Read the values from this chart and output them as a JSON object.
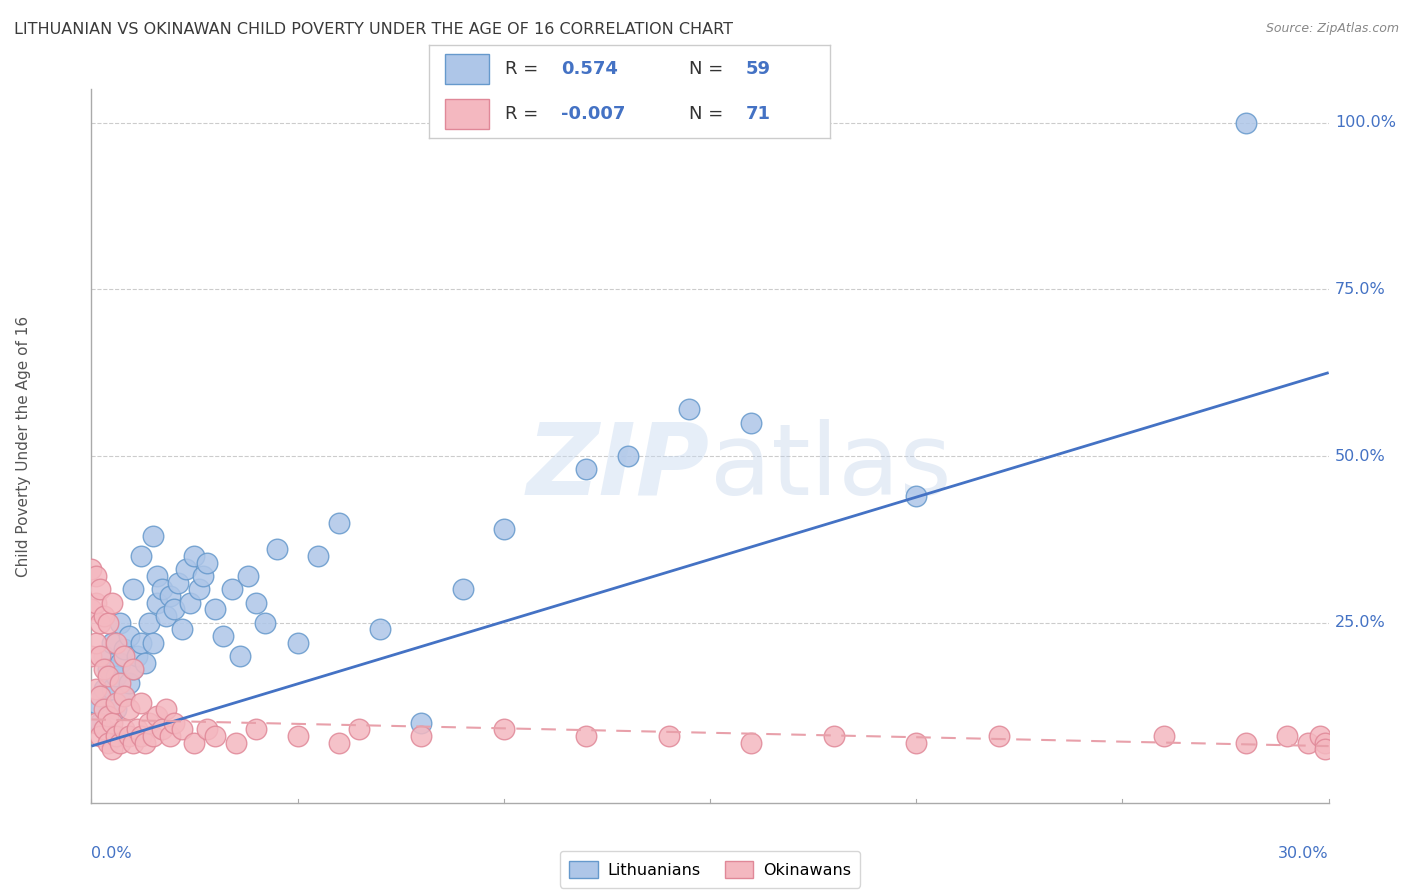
{
  "title": "LITHUANIAN VS OKINAWAN CHILD POVERTY UNDER THE AGE OF 16 CORRELATION CHART",
  "source": "Source: ZipAtlas.com",
  "ylabel": "Child Poverty Under the Age of 16",
  "xlim": [
    0.0,
    0.3
  ],
  "ylim": [
    -0.02,
    1.05
  ],
  "watermark": "ZIPatlas",
  "blue_scatter_color": "#aec6e8",
  "blue_edge_color": "#6699cc",
  "pink_scatter_color": "#f4b8c0",
  "pink_edge_color": "#e08898",
  "blue_line_color": "#4472c4",
  "pink_line_color": "#e8a0aa",
  "title_color": "#3a3a3a",
  "axis_label_color": "#4472c4",
  "grid_color": "#cccccc",
  "legend_text_color": "#4472c4",
  "legend_r_color": "#333333",
  "lithuanians_x": [
    0.001,
    0.002,
    0.003,
    0.003,
    0.004,
    0.005,
    0.005,
    0.006,
    0.006,
    0.007,
    0.007,
    0.008,
    0.008,
    0.009,
    0.009,
    0.01,
    0.01,
    0.011,
    0.012,
    0.012,
    0.013,
    0.014,
    0.015,
    0.015,
    0.016,
    0.016,
    0.017,
    0.018,
    0.019,
    0.02,
    0.021,
    0.022,
    0.023,
    0.024,
    0.025,
    0.026,
    0.027,
    0.028,
    0.03,
    0.032,
    0.034,
    0.036,
    0.038,
    0.04,
    0.042,
    0.045,
    0.05,
    0.055,
    0.06,
    0.07,
    0.08,
    0.09,
    0.1,
    0.12,
    0.13,
    0.145,
    0.16,
    0.2,
    0.28
  ],
  "lithuanians_y": [
    0.13,
    0.1,
    0.15,
    0.2,
    0.18,
    0.15,
    0.22,
    0.17,
    0.12,
    0.19,
    0.25,
    0.14,
    0.21,
    0.16,
    0.23,
    0.18,
    0.3,
    0.2,
    0.22,
    0.35,
    0.19,
    0.25,
    0.22,
    0.38,
    0.28,
    0.32,
    0.3,
    0.26,
    0.29,
    0.27,
    0.31,
    0.24,
    0.33,
    0.28,
    0.35,
    0.3,
    0.32,
    0.34,
    0.27,
    0.23,
    0.3,
    0.2,
    0.32,
    0.28,
    0.25,
    0.36,
    0.22,
    0.35,
    0.4,
    0.24,
    0.1,
    0.3,
    0.39,
    0.48,
    0.5,
    0.57,
    0.55,
    0.44,
    1.0
  ],
  "okinawans_x": [
    0.0,
    0.0,
    0.0,
    0.001,
    0.001,
    0.001,
    0.001,
    0.001,
    0.002,
    0.002,
    0.002,
    0.002,
    0.002,
    0.003,
    0.003,
    0.003,
    0.003,
    0.004,
    0.004,
    0.004,
    0.004,
    0.005,
    0.005,
    0.005,
    0.006,
    0.006,
    0.006,
    0.007,
    0.007,
    0.008,
    0.008,
    0.008,
    0.009,
    0.009,
    0.01,
    0.01,
    0.011,
    0.012,
    0.012,
    0.013,
    0.014,
    0.015,
    0.016,
    0.017,
    0.018,
    0.019,
    0.02,
    0.022,
    0.025,
    0.028,
    0.03,
    0.035,
    0.04,
    0.05,
    0.06,
    0.065,
    0.08,
    0.1,
    0.12,
    0.14,
    0.16,
    0.18,
    0.2,
    0.22,
    0.26,
    0.28,
    0.29,
    0.295,
    0.298,
    0.299,
    0.299
  ],
  "okinawans_y": [
    0.2,
    0.27,
    0.33,
    0.1,
    0.15,
    0.22,
    0.28,
    0.32,
    0.08,
    0.14,
    0.2,
    0.25,
    0.3,
    0.09,
    0.12,
    0.18,
    0.26,
    0.07,
    0.11,
    0.17,
    0.25,
    0.06,
    0.1,
    0.28,
    0.08,
    0.13,
    0.22,
    0.07,
    0.16,
    0.09,
    0.14,
    0.2,
    0.08,
    0.12,
    0.07,
    0.18,
    0.09,
    0.08,
    0.13,
    0.07,
    0.1,
    0.08,
    0.11,
    0.09,
    0.12,
    0.08,
    0.1,
    0.09,
    0.07,
    0.09,
    0.08,
    0.07,
    0.09,
    0.08,
    0.07,
    0.09,
    0.08,
    0.09,
    0.08,
    0.08,
    0.07,
    0.08,
    0.07,
    0.08,
    0.08,
    0.07,
    0.08,
    0.07,
    0.08,
    0.07,
    0.06
  ],
  "blue_line_x": [
    0.0,
    0.3
  ],
  "blue_line_y": [
    0.065,
    0.625
  ],
  "pink_line_x": [
    0.0,
    0.3
  ],
  "pink_line_y": [
    0.105,
    0.065
  ],
  "ytick_vals": [
    0.25,
    0.5,
    0.75,
    1.0
  ],
  "ytick_labels": [
    "25.0%",
    "50.0%",
    "75.0%",
    "100.0%"
  ]
}
